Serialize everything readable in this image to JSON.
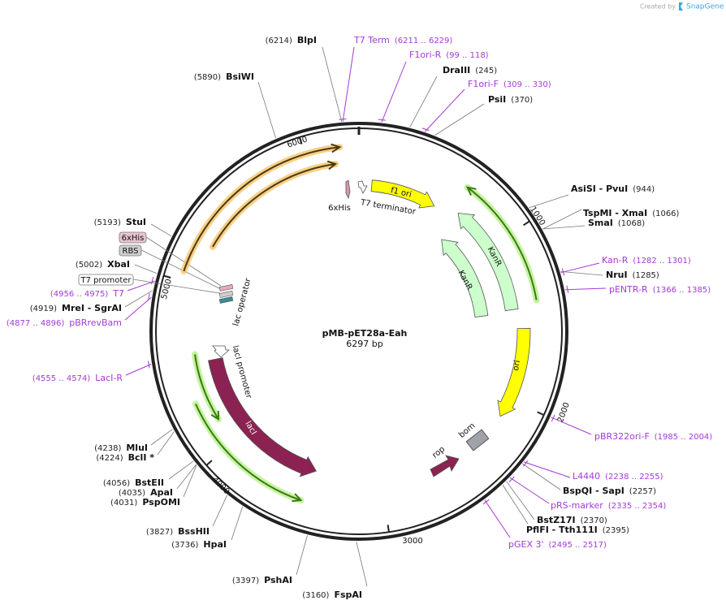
{
  "header": {
    "credit": "Created by",
    "brand": "SnapGene"
  },
  "map": {
    "name": "pMB-pET28a-Eah",
    "length": "6297 bp"
  },
  "scale": [
    1000,
    2000,
    3000,
    4000,
    5000,
    6000
  ],
  "sites": [
    {
      "name": "BlpI",
      "position": "(6214)"
    },
    {
      "name": "BsiWI",
      "position": "(5890)"
    },
    {
      "name": "DraIII",
      "position": "(245)"
    },
    {
      "name": "PsiI",
      "position": "(370)"
    },
    {
      "name": "AsiSI - PvuI",
      "position": "(944)"
    },
    {
      "name": "TspMI - XmaI",
      "position": "(1066)"
    },
    {
      "name": "SmaI",
      "position": "(1068)"
    },
    {
      "name": "NruI",
      "position": "(1285)"
    },
    {
      "name": "BspQI - SapI",
      "position": "(2257)"
    },
    {
      "name": "BstZ17I",
      "position": "(2370)"
    },
    {
      "name": "PflFI - Tth111I",
      "position": "(2395)"
    },
    {
      "name": "FspAI",
      "position": "(3160)"
    },
    {
      "name": "PshAI",
      "position": "(3397)"
    },
    {
      "name": "HpaI",
      "position": "(3736)"
    },
    {
      "name": "BssHII",
      "position": "(3827)"
    },
    {
      "name": "PspOMI",
      "position": "(4031)"
    },
    {
      "name": "ApaI",
      "position": "(4035)"
    },
    {
      "name": "BstEII",
      "position": "(4056)"
    },
    {
      "name": "BclI *",
      "position": "(4224)"
    },
    {
      "name": "MluI",
      "position": "(4238)"
    },
    {
      "name": "MreI - SgrAI",
      "position": "(4919)"
    },
    {
      "name": "XbaI",
      "position": "(5002)"
    },
    {
      "name": "StuI",
      "position": "(5193)"
    }
  ],
  "primers": [
    {
      "name": "T7 Term",
      "position": "(6211 .. 6229)"
    },
    {
      "name": "F1ori-R",
      "position": "(99 .. 118)"
    },
    {
      "name": "F1ori-F",
      "position": "(309 .. 330)"
    },
    {
      "name": "Kan-R",
      "position": "(1282 .. 1301)"
    },
    {
      "name": "pENTR-R",
      "position": "(1366 .. 1385)"
    },
    {
      "name": "pBR322ori-F",
      "position": "(1985 .. 2004)"
    },
    {
      "name": "L4440",
      "position": "(2238 .. 2255)"
    },
    {
      "name": "pRS-marker",
      "position": "(2335 .. 2354)"
    },
    {
      "name": "pGEX 3'",
      "position": "(2495 .. 2517)"
    },
    {
      "name": "LacI-R",
      "position": "(4555 .. 4574)"
    },
    {
      "name": "pBRrevBam",
      "position": "(4877 .. 4896)"
    },
    {
      "name": "T7",
      "position": "(4956 .. 4975)"
    }
  ],
  "boxes": [
    "6xHis",
    "RBS",
    "T7 promoter"
  ],
  "features": [
    "f1 ori",
    "KanR",
    "KanR",
    "ori",
    "lacI",
    "rop",
    "bom",
    "6xHis",
    "T7 terminator",
    "lac operator",
    "lacI promoter"
  ]
}
